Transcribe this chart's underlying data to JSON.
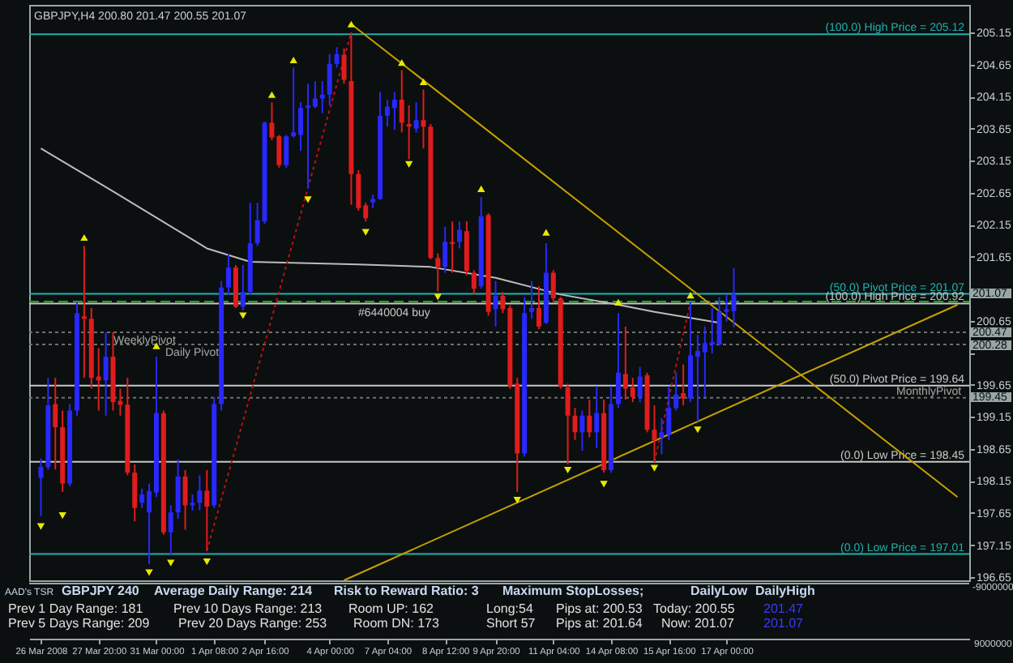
{
  "chart_data": {
    "type": "candlestick",
    "title": "GBPJPY,H4  200.80 201.47 200.55 201.07",
    "categories": [
      "26 Mar 2008",
      null,
      null,
      null,
      null,
      null,
      null,
      null,
      "27 Mar 20:00",
      null,
      null,
      null,
      null,
      null,
      null,
      null,
      "31 Mar 00:00",
      null,
      null,
      null,
      null,
      null,
      null,
      null,
      "1 Apr 08:00",
      null,
      null,
      null,
      null,
      null,
      null,
      "2 Apr 16:00",
      null,
      null,
      null,
      null,
      null,
      null,
      null,
      null,
      "4 Apr 00:00",
      null,
      null,
      null,
      null,
      null,
      null,
      null,
      "7 Apr 04:00",
      null,
      null,
      null,
      null,
      null,
      null,
      null,
      "8 Apr 12:00",
      null,
      null,
      null,
      null,
      null,
      null,
      "9 Apr 20:00",
      null,
      null,
      null,
      null,
      null,
      null,
      null,
      "11 Apr 04:00",
      null,
      null,
      null,
      null,
      null,
      null,
      null,
      "14 Apr 08:00",
      null,
      null,
      null,
      null,
      null,
      null,
      null,
      "15 Apr 16:00",
      null,
      null,
      null,
      null,
      null,
      null,
      null,
      "17 Apr 00:00",
      null,
      null,
      null,
      null,
      null,
      null,
      null,
      null,
      null,
      null,
      null,
      null,
      null,
      null,
      null,
      null,
      null,
      null,
      null,
      null,
      null,
      null,
      null,
      null,
      null,
      null,
      null,
      null,
      null,
      null,
      null,
      null
    ],
    "ohlc": [
      [
        198.2,
        198.5,
        197.6,
        198.37
      ],
      [
        198.37,
        199.76,
        198.33,
        199.33
      ],
      [
        199.35,
        199.76,
        198.33,
        198.99
      ],
      [
        198.99,
        199.25,
        197.98,
        198.11
      ],
      [
        198.11,
        199.35,
        198.07,
        199.25
      ],
      [
        199.25,
        200.94,
        199.17,
        200.77
      ],
      [
        200.72,
        201.82,
        199.76,
        200.68
      ],
      [
        200.68,
        200.85,
        199.59,
        199.76
      ],
      [
        199.78,
        200.22,
        199.25,
        199.72
      ],
      [
        199.72,
        200.47,
        199.17,
        200.09
      ],
      [
        200.09,
        200.47,
        199.25,
        199.38
      ],
      [
        199.4,
        199.59,
        199.17,
        199.34
      ],
      [
        199.34,
        199.76,
        198.24,
        198.28
      ],
      [
        198.28,
        198.41,
        197.52,
        197.73
      ],
      [
        197.81,
        198.03,
        197.73,
        197.94
      ],
      [
        197.66,
        198.11,
        196.85,
        197.99
      ],
      [
        197.97,
        200.09,
        197.9,
        199.21
      ],
      [
        199.21,
        199.25,
        197.31,
        197.35
      ],
      [
        197.35,
        197.77,
        197.0,
        197.66
      ],
      [
        197.66,
        198.49,
        197.56,
        198.22
      ],
      [
        198.22,
        198.32,
        197.39,
        197.77
      ],
      [
        197.77,
        197.94,
        197.69,
        197.81
      ],
      [
        197.81,
        198.24,
        197.69,
        198.0
      ],
      [
        198.0,
        198.32,
        197.06,
        197.75
      ],
      [
        197.77,
        199.46,
        197.73,
        199.35
      ],
      [
        199.35,
        201.27,
        199.25,
        201.17
      ],
      [
        201.17,
        201.69,
        201.06,
        201.48
      ],
      [
        201.48,
        201.52,
        200.85,
        200.87
      ],
      [
        200.87,
        201.52,
        200.81,
        201.1
      ],
      [
        201.1,
        202.49,
        201.06,
        201.86
      ],
      [
        201.86,
        202.49,
        201.82,
        202.22
      ],
      [
        202.2,
        203.76,
        202.16,
        203.74
      ],
      [
        203.74,
        204.06,
        203.47,
        203.51
      ],
      [
        203.53,
        203.55,
        203.04,
        203.08
      ],
      [
        203.08,
        203.55,
        203.04,
        203.53
      ],
      [
        203.53,
        204.6,
        203.51,
        203.59
      ],
      [
        203.55,
        204.06,
        203.3,
        203.97
      ],
      [
        203.97,
        204.35,
        202.71,
        204.01
      ],
      [
        203.99,
        204.39,
        203.97,
        204.12
      ],
      [
        204.12,
        204.39,
        203.89,
        204.18
      ],
      [
        204.18,
        204.81,
        204.01,
        204.66
      ],
      [
        204.66,
        204.92,
        204.6,
        204.81
      ],
      [
        204.8,
        204.9,
        204.35,
        204.41
      ],
      [
        204.39,
        205.15,
        202.46,
        202.94
      ],
      [
        202.94,
        203.0,
        202.37,
        202.41
      ],
      [
        202.45,
        202.49,
        202.2,
        202.25
      ],
      [
        202.5,
        202.62,
        202.41,
        202.55
      ],
      [
        202.55,
        204.22,
        202.54,
        203.85
      ],
      [
        203.85,
        204.1,
        203.68,
        203.99
      ],
      [
        203.97,
        204.22,
        203.63,
        204.1
      ],
      [
        204.1,
        204.56,
        203.59,
        203.74
      ],
      [
        203.72,
        204.01,
        203.17,
        203.68
      ],
      [
        203.65,
        204.06,
        203.59,
        203.78
      ],
      [
        203.78,
        204.26,
        203.34,
        203.68
      ],
      [
        203.68,
        203.72,
        201.61,
        201.63
      ],
      [
        201.63,
        201.7,
        201.11,
        201.49
      ],
      [
        201.49,
        202.12,
        201.4,
        201.88
      ],
      [
        201.88,
        202.2,
        201.4,
        201.85
      ],
      [
        201.88,
        202.2,
        201.78,
        202.07
      ],
      [
        202.05,
        202.2,
        201.36,
        201.43
      ],
      [
        201.4,
        201.44,
        201.06,
        201.15
      ],
      [
        201.19,
        202.58,
        201.15,
        202.28
      ],
      [
        202.3,
        202.33,
        200.73,
        200.79
      ],
      [
        200.83,
        201.27,
        200.56,
        201.04
      ],
      [
        201.04,
        201.1,
        200.77,
        200.83
      ],
      [
        200.85,
        200.89,
        199.59,
        199.63
      ],
      [
        199.67,
        199.76,
        197.98,
        198.58
      ],
      [
        198.58,
        201.02,
        198.53,
        200.77
      ],
      [
        200.79,
        201.27,
        200.68,
        200.85
      ],
      [
        200.85,
        201.19,
        200.52,
        200.56
      ],
      [
        200.62,
        201.86,
        200.6,
        201.4
      ],
      [
        201.4,
        201.44,
        200.94,
        201.0
      ],
      [
        201.0,
        201.02,
        199.59,
        199.63
      ],
      [
        199.61,
        199.67,
        198.41,
        199.17
      ],
      [
        199.17,
        199.29,
        198.79,
        198.91
      ],
      [
        198.91,
        199.25,
        198.62,
        199.17
      ],
      [
        199.17,
        199.42,
        198.83,
        198.91
      ],
      [
        198.91,
        199.63,
        198.66,
        199.21
      ],
      [
        199.21,
        199.42,
        198.28,
        198.32
      ],
      [
        198.32,
        199.63,
        198.28,
        199.35
      ],
      [
        199.35,
        200.77,
        199.29,
        199.84
      ],
      [
        199.82,
        200.56,
        199.42,
        199.59
      ],
      [
        199.61,
        199.76,
        199.38,
        199.46
      ],
      [
        199.46,
        199.93,
        199.38,
        199.78
      ],
      [
        199.8,
        199.84,
        198.91,
        198.95
      ],
      [
        198.95,
        199.33,
        198.45,
        198.79
      ],
      [
        198.83,
        199.13,
        198.57,
        198.91
      ],
      [
        198.87,
        199.63,
        198.79,
        199.29
      ],
      [
        199.29,
        199.84,
        199.25,
        199.5
      ],
      [
        199.52,
        199.97,
        199.33,
        199.44
      ],
      [
        199.44,
        200.94,
        199.38,
        200.11
      ],
      [
        200.09,
        200.43,
        199.08,
        200.18
      ],
      [
        200.16,
        200.56,
        199.46,
        200.3
      ],
      [
        200.28,
        200.85,
        200.14,
        200.32
      ],
      [
        200.28,
        201.02,
        200.26,
        200.79
      ],
      [
        200.79,
        201.06,
        200.64,
        200.83
      ],
      [
        200.8,
        201.47,
        200.55,
        201.07
      ],
      null,
      null,
      null,
      null,
      null,
      null,
      null,
      null,
      null,
      null,
      null,
      null,
      null,
      null,
      null,
      null,
      null,
      null,
      null,
      null,
      null,
      null,
      null,
      null,
      null,
      null,
      null,
      null,
      null,
      null,
      null
    ],
    "colors": [
      "#2828ff",
      "#2828ff",
      "#e01c1c",
      "#e01c1c",
      "#2828ff",
      "#2828ff",
      "#e01c1c",
      "#e01c1c",
      "#e01c1c",
      "#2828ff",
      "#e01c1c",
      "#e01c1c",
      "#e01c1c",
      "#e01c1c",
      "#2828ff",
      "#2828ff",
      "#2828ff",
      "#e01c1c",
      "#2828ff",
      "#2828ff",
      "#e01c1c",
      "#2828ff",
      "#2828ff",
      "#e01c1c",
      "#2828ff",
      "#2828ff",
      "#2828ff",
      "#e01c1c",
      "#2828ff",
      "#2828ff",
      "#2828ff",
      "#2828ff",
      "#e01c1c",
      "#e01c1c",
      "#2828ff",
      "#2828ff",
      "#2828ff",
      "#2828ff",
      "#2828ff",
      "#2828ff",
      "#2828ff",
      "#2828ff",
      "#e01c1c",
      "#e01c1c",
      "#e01c1c",
      "#e01c1c",
      "#2828ff",
      "#2828ff",
      "#2828ff",
      "#2828ff",
      "#e01c1c",
      "#e01c1c",
      "#2828ff",
      "#e01c1c",
      "#e01c1c",
      "#e01c1c",
      "#2828ff",
      "#e01c1c",
      "#2828ff",
      "#e01c1c",
      "#e01c1c",
      "#2828ff",
      "#e01c1c",
      "#2828ff",
      "#e01c1c",
      "#e01c1c",
      "#e01c1c",
      "#2828ff",
      "#2828ff",
      "#e01c1c",
      "#2828ff",
      "#e01c1c",
      "#e01c1c",
      "#e01c1c",
      "#e01c1c",
      "#2828ff",
      "#e01c1c",
      "#2828ff",
      "#e01c1c",
      "#2828ff",
      "#2828ff",
      "#e01c1c",
      "#e01c1c",
      "#2828ff",
      "#e01c1c",
      "#e01c1c",
      "#2828ff",
      "#2828ff",
      "#2828ff",
      "#e01c1c",
      "#2828ff",
      "#2828ff",
      "#2828ff",
      "#2828ff",
      "#2828ff",
      "#2828ff",
      "#2828ff",
      null,
      null,
      null,
      null,
      null,
      null,
      null,
      null,
      null,
      null,
      null,
      null,
      null,
      null,
      null,
      null,
      null,
      null,
      null,
      null,
      null,
      null,
      null,
      null,
      null,
      null,
      null,
      null,
      null,
      null,
      null
    ],
    "series": [
      {
        "type": "line",
        "color": "#bcbcbc",
        "line_style": "solid",
        "values": [
          203.34,
          null,
          null,
          null,
          null,
          null,
          null,
          null,
          null,
          null,
          202.67,
          null,
          null,
          null,
          null,
          null,
          null,
          null,
          null,
          null,
          null,
          null,
          null,
          201.78,
          null,
          null,
          null,
          null,
          null,
          201.57,
          null,
          null,
          null,
          null,
          null,
          null,
          null,
          null,
          null,
          null,
          null,
          null,
          null,
          null,
          201.53,
          null,
          null,
          null,
          null,
          null,
          null,
          null,
          null,
          null,
          201.49,
          null,
          null,
          null,
          null,
          null,
          null,
          null,
          null,
          201.32,
          null,
          null,
          null,
          null,
          null,
          null,
          null,
          null,
          201.06,
          null,
          null,
          null,
          null,
          null,
          null,
          null,
          200.9,
          null,
          null,
          null,
          null,
          200.79,
          null,
          null,
          null,
          null,
          null,
          null,
          null,
          null,
          200.62,
          null,
          null,
          null,
          null,
          null,
          null,
          null,
          null,
          null,
          null,
          null,
          null,
          null,
          null,
          null,
          null,
          null,
          null,
          null,
          null,
          null,
          null,
          null,
          null,
          null,
          null,
          null,
          null,
          null,
          null,
          null,
          null,
          null
        ]
      },
      {
        "type": "line",
        "color": "#c8a000",
        "line_style": "solid",
        "values": [
          null,
          null,
          null,
          null,
          null,
          null,
          null,
          null,
          null,
          null,
          null,
          null,
          null,
          null,
          null,
          null,
          null,
          null,
          null,
          null,
          null,
          null,
          null,
          null,
          null,
          null,
          null,
          null,
          null,
          null,
          null,
          null,
          null,
          null,
          null,
          null,
          null,
          null,
          null,
          null,
          null,
          null,
          null,
          205.28,
          null,
          null,
          null,
          null,
          null,
          null,
          null,
          null,
          null,
          null,
          null,
          null,
          null,
          null,
          null,
          null,
          null,
          null,
          null,
          null,
          null,
          null,
          null,
          null,
          null,
          null,
          null,
          null,
          null,
          null,
          null,
          null,
          null,
          null,
          null,
          null,
          null,
          null,
          null,
          null,
          null,
          null,
          null,
          null,
          null,
          null,
          null,
          null,
          null,
          null,
          null,
          null,
          null,
          null,
          null,
          null,
          null,
          null,
          null,
          null,
          null,
          null,
          null,
          null,
          null,
          null,
          null,
          null,
          null,
          null,
          null,
          null,
          null,
          null,
          null,
          null,
          null,
          null,
          null,
          null,
          null,
          null,
          null,
          197.9
        ]
      },
      {
        "type": "line",
        "color": "#c8a000",
        "line_style": "solid",
        "values": [
          null,
          null,
          null,
          null,
          null,
          null,
          null,
          null,
          null,
          null,
          null,
          null,
          null,
          null,
          null,
          null,
          null,
          null,
          null,
          null,
          null,
          null,
          null,
          null,
          null,
          null,
          null,
          null,
          null,
          null,
          null,
          null,
          null,
          null,
          null,
          null,
          null,
          null,
          null,
          null,
          null,
          null,
          196.6,
          null,
          null,
          null,
          null,
          null,
          null,
          null,
          null,
          null,
          null,
          null,
          null,
          null,
          null,
          null,
          null,
          null,
          null,
          null,
          null,
          null,
          null,
          null,
          null,
          null,
          null,
          null,
          null,
          null,
          null,
          null,
          null,
          null,
          null,
          null,
          null,
          null,
          null,
          null,
          null,
          null,
          null,
          null,
          null,
          null,
          null,
          null,
          null,
          null,
          null,
          null,
          null,
          null,
          null,
          null,
          null,
          null,
          null,
          null,
          null,
          null,
          null,
          null,
          null,
          null,
          null,
          null,
          null,
          null,
          null,
          null,
          null,
          null,
          null,
          null,
          null,
          null,
          null,
          null,
          null,
          null,
          null,
          null,
          null,
          200.9
        ]
      },
      {
        "type": "line",
        "color": "#c01010",
        "line_style": "dotted",
        "values": [
          null,
          null,
          null,
          null,
          null,
          null,
          null,
          null,
          null,
          null,
          null,
          null,
          null,
          null,
          null,
          null,
          null,
          null,
          null,
          null,
          null,
          null,
          null,
          197.06,
          null,
          null,
          null,
          null,
          null,
          null,
          null,
          null,
          null,
          null,
          null,
          null,
          null,
          null,
          null,
          null,
          null,
          null,
          null,
          205.15,
          null,
          null,
          null,
          null,
          null,
          null,
          null,
          null,
          null,
          null,
          null,
          null,
          null,
          null,
          null,
          null,
          null,
          null,
          null,
          null,
          null,
          null,
          null,
          null,
          null,
          null,
          null,
          null,
          null,
          null,
          null,
          null,
          null,
          null,
          null,
          null,
          null,
          null,
          null,
          null,
          null,
          null,
          null,
          null,
          null,
          null,
          null,
          null,
          null,
          null,
          null,
          null,
          null,
          null,
          null,
          null,
          null,
          null,
          null,
          null,
          null,
          null,
          null,
          null,
          null,
          null,
          null,
          null,
          null,
          null,
          null,
          null,
          null,
          null,
          null,
          null,
          null,
          null,
          null,
          null,
          null,
          null,
          null,
          null
        ]
      },
      {
        "type": "line",
        "color": "#c01010",
        "line_style": "dotted",
        "values": [
          null,
          null,
          null,
          null,
          null,
          null,
          null,
          null,
          null,
          null,
          null,
          null,
          null,
          null,
          null,
          null,
          null,
          null,
          null,
          null,
          null,
          null,
          null,
          null,
          null,
          null,
          null,
          null,
          null,
          null,
          null,
          null,
          null,
          null,
          null,
          null,
          null,
          null,
          null,
          null,
          null,
          null,
          null,
          null,
          null,
          null,
          null,
          null,
          null,
          null,
          null,
          null,
          null,
          null,
          null,
          null,
          null,
          null,
          null,
          null,
          null,
          null,
          null,
          null,
          null,
          null,
          null,
          null,
          null,
          null,
          null,
          null,
          null,
          null,
          null,
          null,
          null,
          null,
          null,
          null,
          null,
          null,
          null,
          null,
          null,
          198.45,
          null,
          null,
          null,
          null,
          200.94,
          null,
          null,
          null,
          null,
          null,
          null,
          null,
          null,
          null,
          null,
          null,
          null,
          null,
          null,
          null,
          null,
          null,
          null,
          null,
          null,
          null,
          null,
          null,
          null,
          null,
          null,
          null,
          null,
          null,
          null,
          null,
          null,
          null,
          null,
          null,
          null,
          null
        ]
      },
      {
        "type": "scatter",
        "color": "#e8e800",
        "marker": "triangle",
        "values": [
          null,
          null,
          null,
          null,
          null,
          null,
          201.95,
          null,
          null,
          null,
          null,
          null,
          null,
          null,
          null,
          null,
          200.26,
          null,
          null,
          null,
          null,
          null,
          null,
          null,
          null,
          null,
          null,
          null,
          null,
          null,
          null,
          null,
          204.18,
          null,
          null,
          204.72,
          null,
          null,
          null,
          null,
          null,
          null,
          null,
          205.28,
          null,
          null,
          null,
          null,
          null,
          null,
          204.68,
          null,
          null,
          204.38,
          null,
          null,
          null,
          null,
          null,
          null,
          null,
          202.71,
          null,
          null,
          null,
          null,
          null,
          null,
          null,
          null,
          202.03,
          null,
          null,
          null,
          null,
          null,
          null,
          null,
          null,
          null,
          200.94,
          null,
          null,
          null,
          null,
          null,
          null,
          null,
          null,
          null,
          201.05,
          null,
          null,
          null,
          null,
          null,
          null,
          null,
          null,
          null,
          null,
          null,
          null,
          null,
          null,
          null,
          null,
          null,
          null,
          null,
          null,
          null,
          null,
          null,
          null,
          null,
          null,
          null,
          null,
          null,
          null,
          null,
          null,
          null,
          null,
          null,
          null,
          null
        ]
      },
      {
        "type": "scatter",
        "color": "#e8e800",
        "marker": "triangle-down",
        "values": [
          197.44,
          null,
          null,
          197.61,
          null,
          null,
          null,
          null,
          null,
          null,
          null,
          null,
          null,
          null,
          null,
          196.72,
          null,
          null,
          196.87,
          null,
          null,
          null,
          null,
          196.89,
          null,
          null,
          null,
          null,
          200.73,
          null,
          null,
          null,
          null,
          null,
          null,
          null,
          null,
          202.54,
          null,
          null,
          null,
          null,
          null,
          null,
          null,
          202.03,
          null,
          null,
          null,
          null,
          null,
          203.09,
          null,
          null,
          null,
          201.02,
          null,
          null,
          null,
          null,
          null,
          null,
          null,
          null,
          null,
          null,
          197.85,
          null,
          null,
          null,
          null,
          null,
          null,
          198.32,
          null,
          null,
          null,
          null,
          198.1,
          null,
          null,
          null,
          null,
          null,
          null,
          198.35,
          null,
          null,
          null,
          null,
          null,
          198.95,
          null,
          null,
          null,
          null,
          null,
          null,
          null,
          null,
          null,
          null,
          null,
          null,
          null,
          null,
          null,
          null,
          null,
          null,
          null,
          null,
          null,
          null,
          null,
          null,
          null,
          null,
          null,
          null,
          null,
          null,
          null,
          null,
          null,
          null,
          null,
          null
        ]
      }
    ],
    "ref_lines": [
      {
        "axis": "y",
        "value": 205.12,
        "label": "(100.0) High Price = 205.12",
        "color": "#20b0b0",
        "line_style": "solid"
      },
      {
        "axis": "y",
        "value": 201.07,
        "label": "(50.0) Pivot Price = 201.07",
        "color": "#20b0b0",
        "line_style": "solid"
      },
      {
        "axis": "y",
        "value": 197.01,
        "label": "(0.0) Low Price = 197.01",
        "color": "#20b0b0",
        "line_style": "solid"
      },
      {
        "axis": "y",
        "value": 200.92,
        "label": "(100.0) High Price = 200.92",
        "color": "#c8c8c8",
        "line_style": "solid"
      },
      {
        "axis": "y",
        "value": 199.64,
        "label": "(50.0) Pivot Price = 199.64",
        "color": "#c8c8c8",
        "line_style": "solid"
      },
      {
        "axis": "y",
        "value": 198.45,
        "label": "(0.0) Low Price = 198.45",
        "color": "#c8c8c8",
        "line_style": "solid"
      },
      {
        "axis": "y",
        "value": 200.95,
        "label": "#6440004 buy",
        "color": "#10b010",
        "line_style": "dashed"
      },
      {
        "axis": "y",
        "value": 200.47,
        "label": "WeeklyPivot",
        "color": "#707070",
        "line_style": "dotted"
      },
      {
        "axis": "y",
        "value": 200.28,
        "label": "Daily Pivot",
        "color": "#707070",
        "line_style": "dotted"
      },
      {
        "axis": "y",
        "value": 199.45,
        "label": "MonthlyPivot",
        "color": "#707070",
        "line_style": "dotted"
      }
    ],
    "annotations": [
      "201.07",
      "200.47",
      "200.28",
      "199.45",
      "AAD's TSR",
      "GBPJPY 240",
      "Average Daily Range: 214",
      "Risk to Reward Ratio: 3",
      "Maximum StopLosses;",
      "DailyLow",
      "DailyHigh",
      "Prev 1 Day Range: 181",
      "Prev 10 Days Range: 213",
      "Room UP: 162",
      "Long:54",
      "Pips at: 200.53",
      "Today: 200.55",
      "201.47",
      "Prev 5 Days Range: 209",
      "Prev 20 Days Range: 253",
      "Room DN: 173",
      "Short 57",
      "Pips at: 201.64",
      "Now: 201.07",
      "201.07",
      "-9000000",
      "9000000"
    ],
    "ylim": [
      196.6,
      205.58
    ],
    "yticks": [
      205.15,
      204.65,
      204.15,
      203.65,
      203.15,
      202.65,
      202.15,
      201.65,
      {
        "value": 201.15,
        "label": null
      },
      200.65,
      {
        "value": 200.15,
        "label": null
      },
      199.65,
      199.15,
      198.65,
      198.15,
      197.65,
      197.15,
      196.65
    ],
    "grid": false
  }
}
